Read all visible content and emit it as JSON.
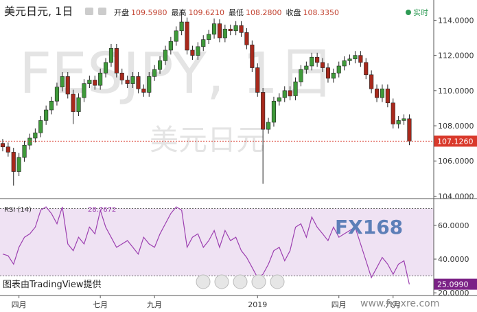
{
  "header": {
    "title": "美元日元, 1日",
    "live": "实时",
    "fields": [
      {
        "label": "开盘",
        "value": "109.5980"
      },
      {
        "label": "最高",
        "value": "109.6210"
      },
      {
        "label": "最低",
        "value": "108.2800"
      },
      {
        "label": "收盘",
        "value": "108.3350"
      }
    ],
    "watermark": "FESJPY, 1日",
    "watermark_sub": "美元日元",
    "credit": "图表由TradingView提供",
    "logo": "FX168",
    "site": "www.fxexre.com"
  },
  "chart_data": [
    {
      "type": "candlestick",
      "up_color": "#3f9a3a",
      "down_color": "#a8291c",
      "xlim": [
        -0.5,
        79.5
      ],
      "ylim": [
        103.9,
        115.15
      ],
      "xticks": [
        {
          "value": 3,
          "label": "四月"
        },
        {
          "value": 18,
          "label": "七月"
        },
        {
          "value": 28,
          "label": "九月"
        },
        {
          "value": 47,
          "label": "2019"
        },
        {
          "value": 62,
          "label": "四月"
        },
        {
          "value": 72,
          "label": "六月"
        }
      ],
      "yticks": [
        {
          "value": 104,
          "label": "104.0000"
        },
        {
          "value": 106,
          "label": "106.0000"
        },
        {
          "value": 108,
          "label": "108.0000"
        },
        {
          "value": 110,
          "label": "110.0000"
        },
        {
          "value": 112,
          "label": "112.0000"
        },
        {
          "value": 114,
          "label": "114.0000"
        }
      ],
      "last_price": {
        "value": 107.126,
        "label": "107.1260"
      },
      "last_color": "#d9392b",
      "open": [
        107.0,
        106.8,
        106.5,
        105.4,
        106.2,
        106.9,
        107.3,
        107.6,
        108.3,
        108.9,
        109.4,
        110.2,
        110.8,
        109.8,
        108.8,
        109.6,
        110.4,
        110.6,
        110.3,
        111.0,
        111.6,
        112.4,
        111.0,
        110.6,
        110.4,
        110.8,
        110.1,
        109.9,
        110.8,
        111.2,
        111.7,
        112.3,
        112.8,
        113.4,
        113.9,
        112.3,
        112.0,
        112.5,
        112.9,
        113.2,
        113.8,
        113.0,
        113.5,
        113.4,
        113.7,
        113.3,
        112.6,
        111.3,
        109.9,
        107.8,
        108.2,
        109.4,
        109.6,
        110.0,
        109.7,
        110.5,
        111.2,
        111.4,
        111.9,
        111.6,
        111.3,
        110.7,
        111.0,
        111.4,
        111.7,
        111.8,
        112.0,
        111.6,
        110.9,
        110.1,
        109.6,
        110.1,
        109.3,
        108.1,
        108.3,
        108.4
      ],
      "high": [
        107.25,
        107.05,
        106.75,
        106.45,
        107.15,
        107.55,
        107.85,
        108.55,
        109.15,
        109.65,
        110.45,
        111.05,
        111.05,
        110.05,
        109.85,
        110.65,
        110.85,
        110.85,
        111.25,
        111.85,
        112.65,
        112.65,
        111.25,
        110.85,
        111.05,
        111.05,
        110.35,
        111.05,
        111.45,
        111.95,
        112.55,
        113.05,
        113.65,
        114.6,
        114.15,
        112.55,
        112.75,
        113.15,
        113.45,
        114.1,
        114.05,
        113.75,
        113.75,
        113.95,
        113.95,
        113.55,
        112.85,
        111.55,
        110.15,
        108.45,
        109.65,
        109.85,
        110.25,
        110.25,
        110.75,
        111.45,
        111.65,
        112.15,
        112.15,
        111.85,
        111.55,
        111.25,
        111.65,
        111.95,
        112.05,
        112.25,
        112.25,
        111.85,
        111.15,
        110.35,
        110.35,
        110.35,
        109.55,
        108.55,
        108.65,
        108.65
      ],
      "low": [
        106.55,
        106.25,
        104.6,
        105.15,
        105.95,
        106.65,
        107.05,
        107.35,
        108.05,
        108.65,
        109.15,
        109.95,
        109.55,
        108.1,
        108.55,
        109.35,
        110.15,
        110.05,
        110.05,
        110.75,
        111.35,
        110.75,
        110.35,
        110.15,
        110.15,
        109.85,
        109.65,
        109.65,
        110.55,
        110.95,
        111.45,
        112.05,
        112.55,
        113.15,
        112.05,
        111.75,
        111.75,
        112.25,
        112.65,
        112.95,
        112.75,
        112.75,
        113.15,
        113.15,
        113.05,
        112.35,
        111.05,
        109.65,
        104.7,
        107.55,
        107.95,
        109.15,
        109.35,
        109.45,
        109.45,
        110.25,
        110.95,
        111.15,
        111.35,
        111.05,
        110.45,
        110.45,
        110.75,
        111.15,
        111.45,
        111.55,
        111.35,
        110.65,
        109.85,
        109.35,
        109.35,
        109.05,
        107.85,
        107.85,
        108.05,
        106.9
      ],
      "close": [
        106.8,
        106.5,
        105.4,
        106.2,
        106.9,
        107.3,
        107.6,
        108.3,
        108.9,
        109.4,
        110.2,
        110.8,
        109.8,
        108.8,
        109.6,
        110.4,
        110.6,
        110.3,
        111.0,
        111.6,
        112.4,
        111.0,
        110.6,
        110.4,
        110.8,
        110.1,
        109.9,
        110.8,
        111.2,
        111.7,
        112.3,
        112.8,
        113.4,
        113.9,
        112.3,
        112.0,
        112.5,
        112.9,
        113.2,
        113.8,
        113.0,
        113.5,
        113.4,
        113.7,
        113.3,
        112.6,
        111.3,
        109.9,
        107.8,
        108.2,
        109.4,
        109.6,
        110.0,
        109.7,
        110.5,
        111.2,
        111.4,
        111.9,
        111.6,
        111.3,
        110.7,
        111.0,
        111.4,
        111.7,
        111.8,
        112.0,
        111.6,
        110.9,
        110.1,
        109.6,
        110.1,
        109.3,
        108.1,
        108.3,
        108.4,
        107.13
      ]
    },
    {
      "type": "line",
      "title": "RSI (14)",
      "title_value": "28.7672",
      "color": "#9c3fb0",
      "band": [
        30,
        70
      ],
      "band_color": "#efe2f3",
      "xlim": [
        -0.5,
        79.5
      ],
      "ylim": [
        18.4,
        75.5
      ],
      "yticks": [
        {
          "value": 20,
          "label": "20.0000"
        },
        {
          "value": 40,
          "label": "40.0000"
        },
        {
          "value": 60,
          "label": "60.0000"
        }
      ],
      "last_value": {
        "value": 25.099,
        "label": "25.0990"
      },
      "values": [
        43,
        42,
        37,
        47,
        53,
        55,
        59,
        69,
        71,
        67,
        61,
        71,
        49,
        45,
        53,
        49,
        59,
        55,
        69,
        59,
        53,
        47,
        49,
        51,
        47,
        43,
        53,
        49,
        47,
        55,
        61,
        67,
        71,
        69,
        47,
        53,
        55,
        47,
        51,
        57,
        47,
        57,
        51,
        53,
        45,
        41,
        35,
        29,
        31,
        37,
        45,
        47,
        39,
        45,
        59,
        61,
        53,
        65,
        59,
        55,
        51,
        59,
        53,
        55,
        57,
        59,
        49,
        39,
        29,
        35,
        41,
        37,
        31,
        37,
        39,
        25.099
      ]
    }
  ]
}
